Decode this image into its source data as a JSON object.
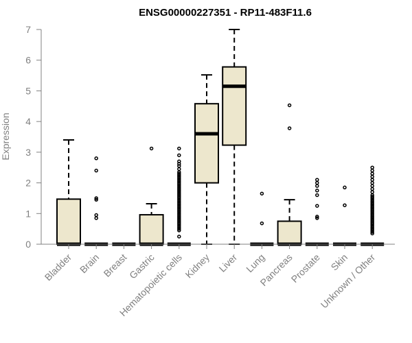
{
  "chart_data": {
    "type": "box",
    "title": "ENSG00000227351 - RP11-483F11.6",
    "xlabel": "",
    "ylabel": "Expression",
    "ylim": [
      0,
      7
    ],
    "yticks": [
      0,
      1,
      2,
      3,
      4,
      5,
      6,
      7
    ],
    "box_fill": "#EDE7CD",
    "outline_color": "#000000",
    "axis_color": "#808080",
    "categories": [
      "Bladder",
      "Brain",
      "Breast",
      "Gastric",
      "Hematopoietic cells",
      "Kidney",
      "Liver",
      "Lung",
      "Pancreas",
      "Prostate",
      "Skin",
      "Unknown / Other"
    ],
    "boxes": [
      {
        "category": "Bladder",
        "min": 0,
        "q1": 0,
        "median": 0,
        "q3": 1.47,
        "max": 3.4,
        "outliers": []
      },
      {
        "category": "Brain",
        "min": 0,
        "q1": 0,
        "median": 0,
        "q3": 0,
        "max": 0,
        "outliers": [
          0.85,
          0.95,
          1.45,
          1.5,
          2.4,
          2.8
        ]
      },
      {
        "category": "Breast",
        "min": 0,
        "q1": 0,
        "median": 0,
        "q3": 0,
        "max": 0,
        "outliers": []
      },
      {
        "category": "Gastric",
        "min": 0,
        "q1": 0,
        "median": 0,
        "q3": 0.96,
        "max": 1.32,
        "outliers": [
          3.12
        ]
      },
      {
        "category": "Hematopoietic cells",
        "min": 0,
        "q1": 0,
        "median": 0,
        "q3": 0,
        "max": 0,
        "outliers": [
          0.25,
          0.45,
          0.5,
          0.55,
          0.6,
          0.65,
          0.7,
          0.75,
          0.8,
          0.85,
          0.9,
          0.95,
          1.0,
          1.05,
          1.1,
          1.15,
          1.2,
          1.25,
          1.3,
          1.35,
          1.4,
          1.45,
          1.5,
          1.55,
          1.6,
          1.65,
          1.7,
          1.75,
          1.8,
          1.85,
          1.9,
          1.95,
          2.0,
          2.05,
          2.1,
          2.15,
          2.2,
          2.25,
          2.3,
          2.35,
          2.45,
          2.55,
          2.62,
          2.7,
          2.9,
          3.12
        ]
      },
      {
        "category": "Kidney",
        "min": 0,
        "q1": 2.0,
        "median": 3.6,
        "q3": 4.58,
        "max": 5.52,
        "outliers": []
      },
      {
        "category": "Liver",
        "min": 0,
        "q1": 3.23,
        "median": 5.15,
        "q3": 5.78,
        "max": 7.0,
        "outliers": []
      },
      {
        "category": "Lung",
        "min": 0,
        "q1": 0,
        "median": 0,
        "q3": 0,
        "max": 0,
        "outliers": [
          0.68,
          1.65
        ]
      },
      {
        "category": "Pancreas",
        "min": 0,
        "q1": 0,
        "median": 0,
        "q3": 0.75,
        "max": 1.45,
        "outliers": [
          3.78,
          4.53
        ]
      },
      {
        "category": "Prostate",
        "min": 0,
        "q1": 0,
        "median": 0,
        "q3": 0,
        "max": 0,
        "outliers": [
          0.85,
          0.9,
          1.25,
          1.6,
          1.75,
          1.9,
          2.0,
          2.1
        ]
      },
      {
        "category": "Skin",
        "min": 0,
        "q1": 0,
        "median": 0,
        "q3": 0,
        "max": 0,
        "outliers": [
          1.27,
          1.85
        ]
      },
      {
        "category": "Unknown / Other",
        "min": 0,
        "q1": 0,
        "median": 0,
        "q3": 0,
        "max": 0,
        "outliers": [
          0.35,
          0.4,
          0.45,
          0.5,
          0.55,
          0.6,
          0.65,
          0.7,
          0.75,
          0.8,
          0.85,
          0.9,
          0.95,
          1.0,
          1.05,
          1.1,
          1.15,
          1.2,
          1.25,
          1.3,
          1.35,
          1.4,
          1.45,
          1.5,
          1.55,
          1.6,
          1.7,
          1.8,
          1.9,
          2.0,
          2.1,
          2.2,
          2.3,
          2.4,
          2.5
        ]
      }
    ]
  }
}
